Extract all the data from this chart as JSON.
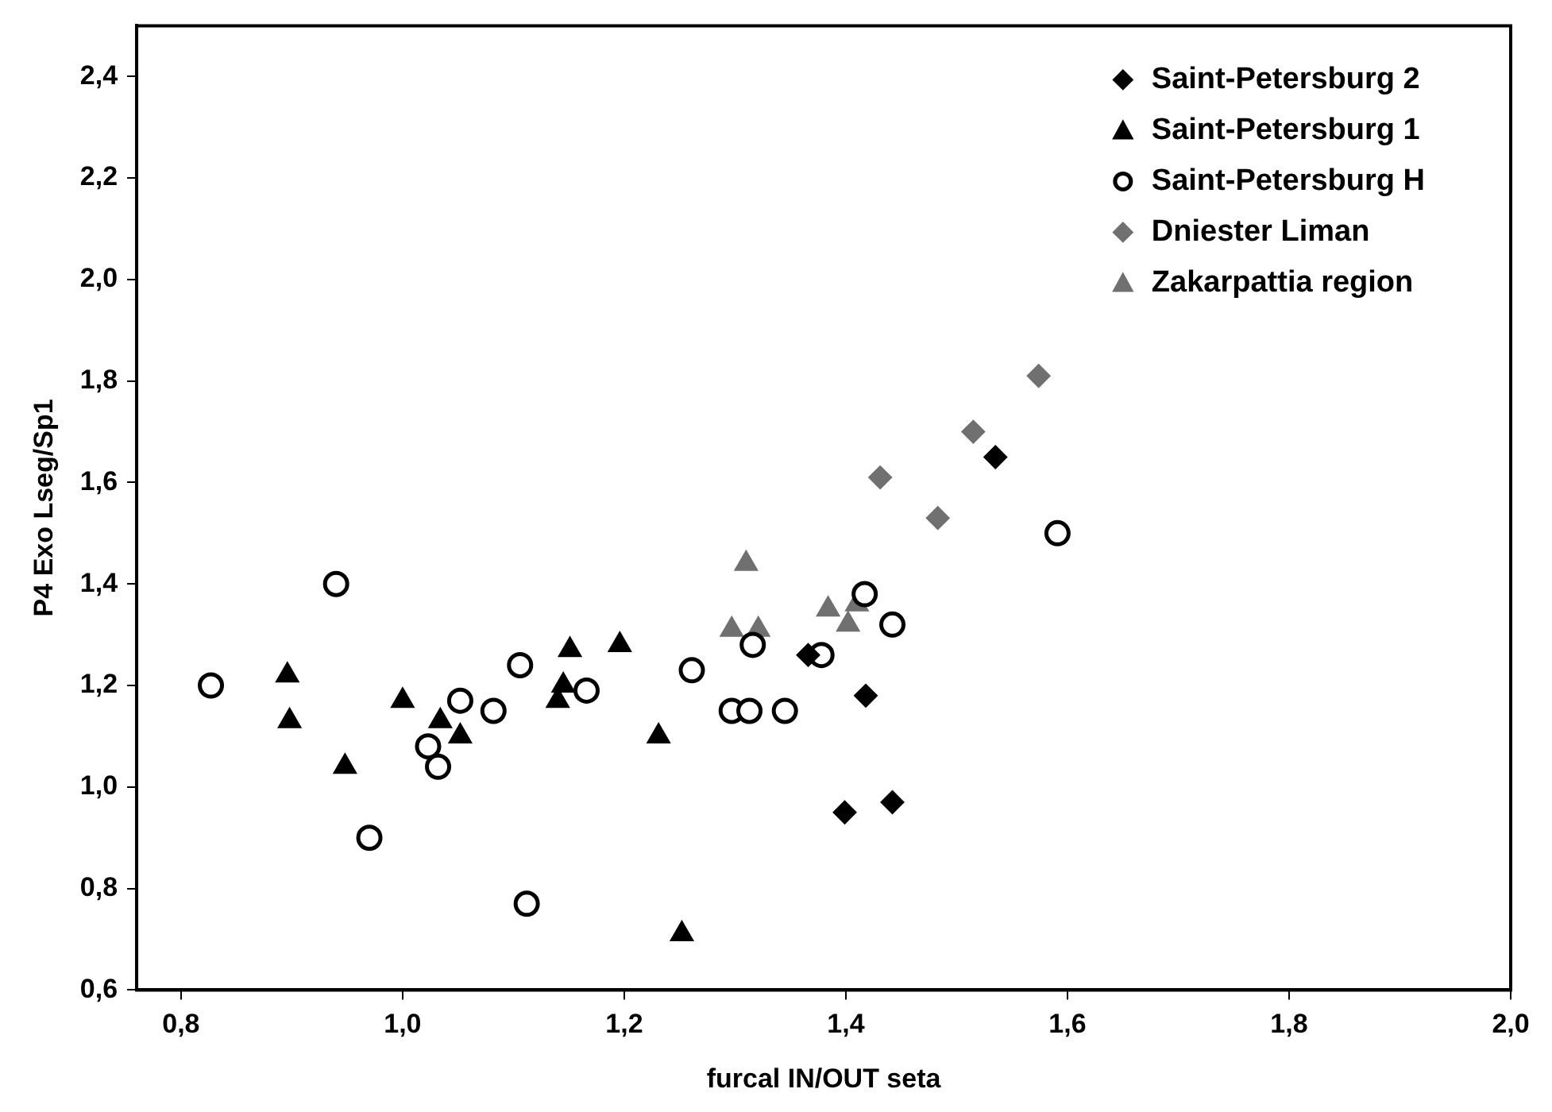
{
  "chart_data": {
    "type": "scatter",
    "xlabel": "furcal IN/OUT seta",
    "ylabel": "P4 Exo Lseg/Sp1",
    "xlim": [
      0.76,
      2.0
    ],
    "ylim": [
      0.6,
      2.5
    ],
    "xticks": [
      {
        "value": 0.8,
        "label": "0,8"
      },
      {
        "value": 1.0,
        "label": "1,0"
      },
      {
        "value": 1.2,
        "label": "1,2"
      },
      {
        "value": 1.4,
        "label": "1,4"
      },
      {
        "value": 1.6,
        "label": "1,6"
      },
      {
        "value": 1.8,
        "label": "1,8"
      },
      {
        "value": 2.0,
        "label": "2,0"
      }
    ],
    "yticks": [
      {
        "value": 0.6,
        "label": "0,6"
      },
      {
        "value": 0.8,
        "label": "0,8"
      },
      {
        "value": 1.0,
        "label": "1,0"
      },
      {
        "value": 1.2,
        "label": "1,2"
      },
      {
        "value": 1.4,
        "label": "1,4"
      },
      {
        "value": 1.6,
        "label": "1,6"
      },
      {
        "value": 1.8,
        "label": "1,8"
      },
      {
        "value": 2.0,
        "label": "2,0"
      },
      {
        "value": 2.2,
        "label": "2,2"
      },
      {
        "value": 2.4,
        "label": "2,4"
      }
    ],
    "grid": false,
    "legend": "top right",
    "series": [
      {
        "name": "Saint-Petersburg 2",
        "color": "#000000",
        "marker": "diamond",
        "x": [
          1.535,
          1.418,
          1.399,
          1.442,
          1.366
        ],
        "values": [
          1.65,
          1.18,
          0.95,
          0.97,
          1.26
        ]
      },
      {
        "name": "Saint-Petersburg 1",
        "color": "#000000",
        "marker": "triangle",
        "x": [
          0.896,
          0.898,
          0.948,
          1.0,
          1.034,
          1.052,
          1.151,
          1.145,
          1.14,
          1.196,
          1.231,
          1.252
        ],
        "values": [
          1.22,
          1.13,
          1.04,
          1.17,
          1.13,
          1.1,
          1.27,
          1.2,
          1.17,
          1.28,
          1.1,
          0.71
        ]
      },
      {
        "name": "Saint-Petersburg H",
        "color": "#000000",
        "marker": "circle",
        "x": [
          0.827,
          0.94,
          0.97,
          1.023,
          1.032,
          1.052,
          1.082,
          1.106,
          1.112,
          1.166,
          1.261,
          1.297,
          1.313,
          1.345,
          1.316,
          1.378,
          1.417,
          1.442,
          1.591
        ],
        "values": [
          1.2,
          1.4,
          0.9,
          1.08,
          1.04,
          1.17,
          1.15,
          1.24,
          0.77,
          1.19,
          1.23,
          1.15,
          1.15,
          1.15,
          1.28,
          1.26,
          1.38,
          1.32,
          1.5
        ]
      },
      {
        "name": "Dniester Liman",
        "color": "#707070",
        "marker": "diamond",
        "x": [
          1.431,
          1.483,
          1.515,
          1.574
        ],
        "values": [
          1.61,
          1.53,
          1.7,
          1.81
        ]
      },
      {
        "name": "Zakarpattia region",
        "color": "#707070",
        "marker": "triangle",
        "x": [
          1.31,
          1.297,
          1.321,
          1.384,
          1.402,
          1.41
        ],
        "values": [
          1.44,
          1.31,
          1.31,
          1.35,
          1.32,
          1.36
        ]
      }
    ]
  }
}
